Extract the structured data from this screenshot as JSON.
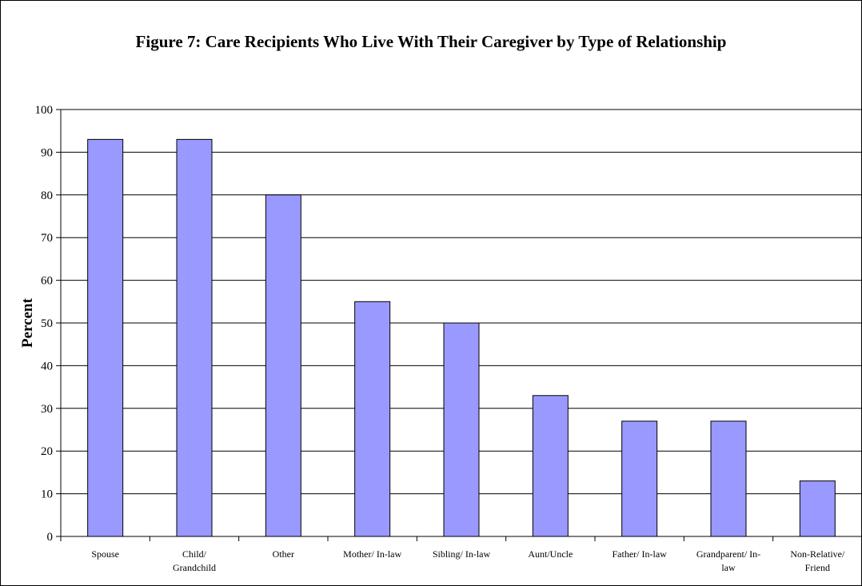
{
  "chart_data": {
    "type": "bar",
    "title": "Figure 7: Care Recipients Who Live With Their Caregiver by Type of Relationship",
    "xlabel": "",
    "ylabel": "Percent",
    "ylim": [
      0,
      100
    ],
    "yticks": [
      "0",
      "10",
      "20",
      "30",
      "40",
      "50",
      "60",
      "70",
      "80",
      "90",
      "100"
    ],
    "grid": true,
    "categories": [
      [
        "Spouse"
      ],
      [
        "Child/",
        "Grandchild"
      ],
      [
        "Other"
      ],
      [
        "Mother/  In-law"
      ],
      [
        "Sibling/  In-law"
      ],
      [
        "Aunt/Uncle"
      ],
      [
        "Father/  In-law"
      ],
      [
        "Grandparent/ In-",
        "law"
      ],
      [
        "Non-Relative/",
        "Friend"
      ]
    ],
    "values": [
      93,
      93,
      80,
      55,
      50,
      33,
      27,
      27,
      13
    ],
    "colors": {
      "bar_fill": "#9999ff",
      "bar_stroke": "#000000",
      "grid": "#000000"
    }
  }
}
